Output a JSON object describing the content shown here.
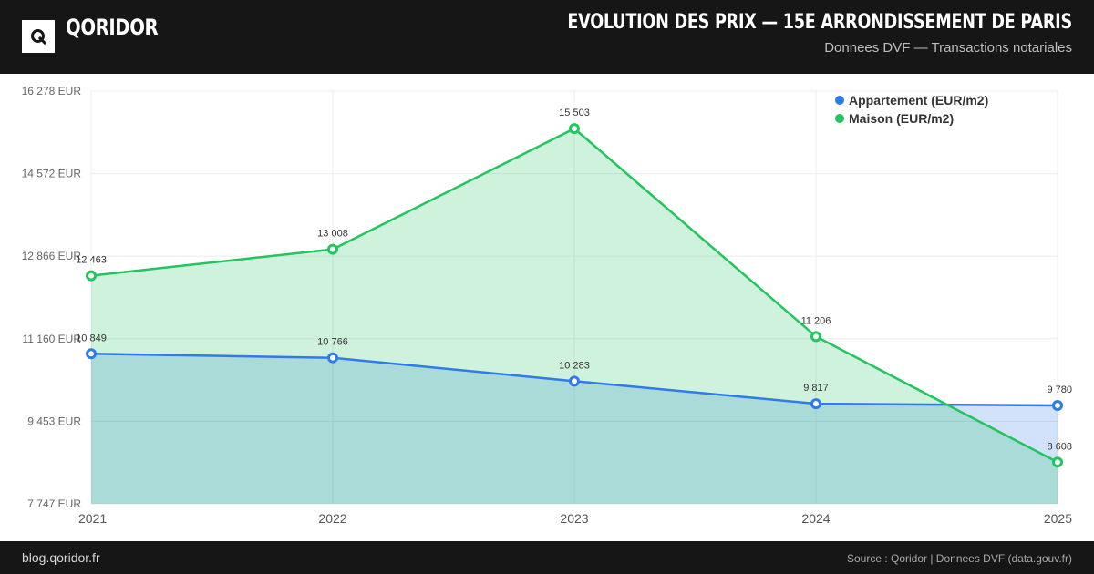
{
  "header": {
    "brand": "QORIDOR",
    "title": "EVOLUTION DES PRIX — 15E ARRONDISSEMENT DE PARIS",
    "subtitle": "Donnees DVF — Transactions notariales"
  },
  "footer": {
    "left": "blog.qoridor.fr",
    "right": "Source : Qoridor | Donnees DVF (data.gouv.fr)"
  },
  "colors": {
    "appartement": "#2f7be9",
    "maison": "#22c55e",
    "header_bg": "#161616"
  },
  "chart_data": {
    "type": "area",
    "categories": [
      "2021",
      "2022",
      "2023",
      "2024",
      "2025"
    ],
    "series": [
      {
        "name": "Appartement (EUR/m2)",
        "values": [
          10849,
          10766,
          10283,
          9817,
          9780
        ],
        "labels": [
          "10 849",
          "10 766",
          "10 283",
          "9 817",
          "9 780"
        ]
      },
      {
        "name": "Maison (EUR/m2)",
        "values": [
          12463,
          13008,
          15503,
          11206,
          8608
        ],
        "labels": [
          "12 463",
          "13 008",
          "15 503",
          "11 206",
          "8 608"
        ]
      }
    ],
    "yticks": [
      7747,
      9453,
      11160,
      12866,
      14572,
      16278
    ],
    "ytick_labels": [
      "7 747 EUR",
      "9 453 EUR",
      "11 160 EUR",
      "12 866 EUR",
      "14 572 EUR",
      "16 278 EUR"
    ],
    "ylim": [
      7747,
      16278
    ],
    "grid": true,
    "legend_position": "top-right",
    "title": "",
    "xlabel": "",
    "ylabel": ""
  }
}
